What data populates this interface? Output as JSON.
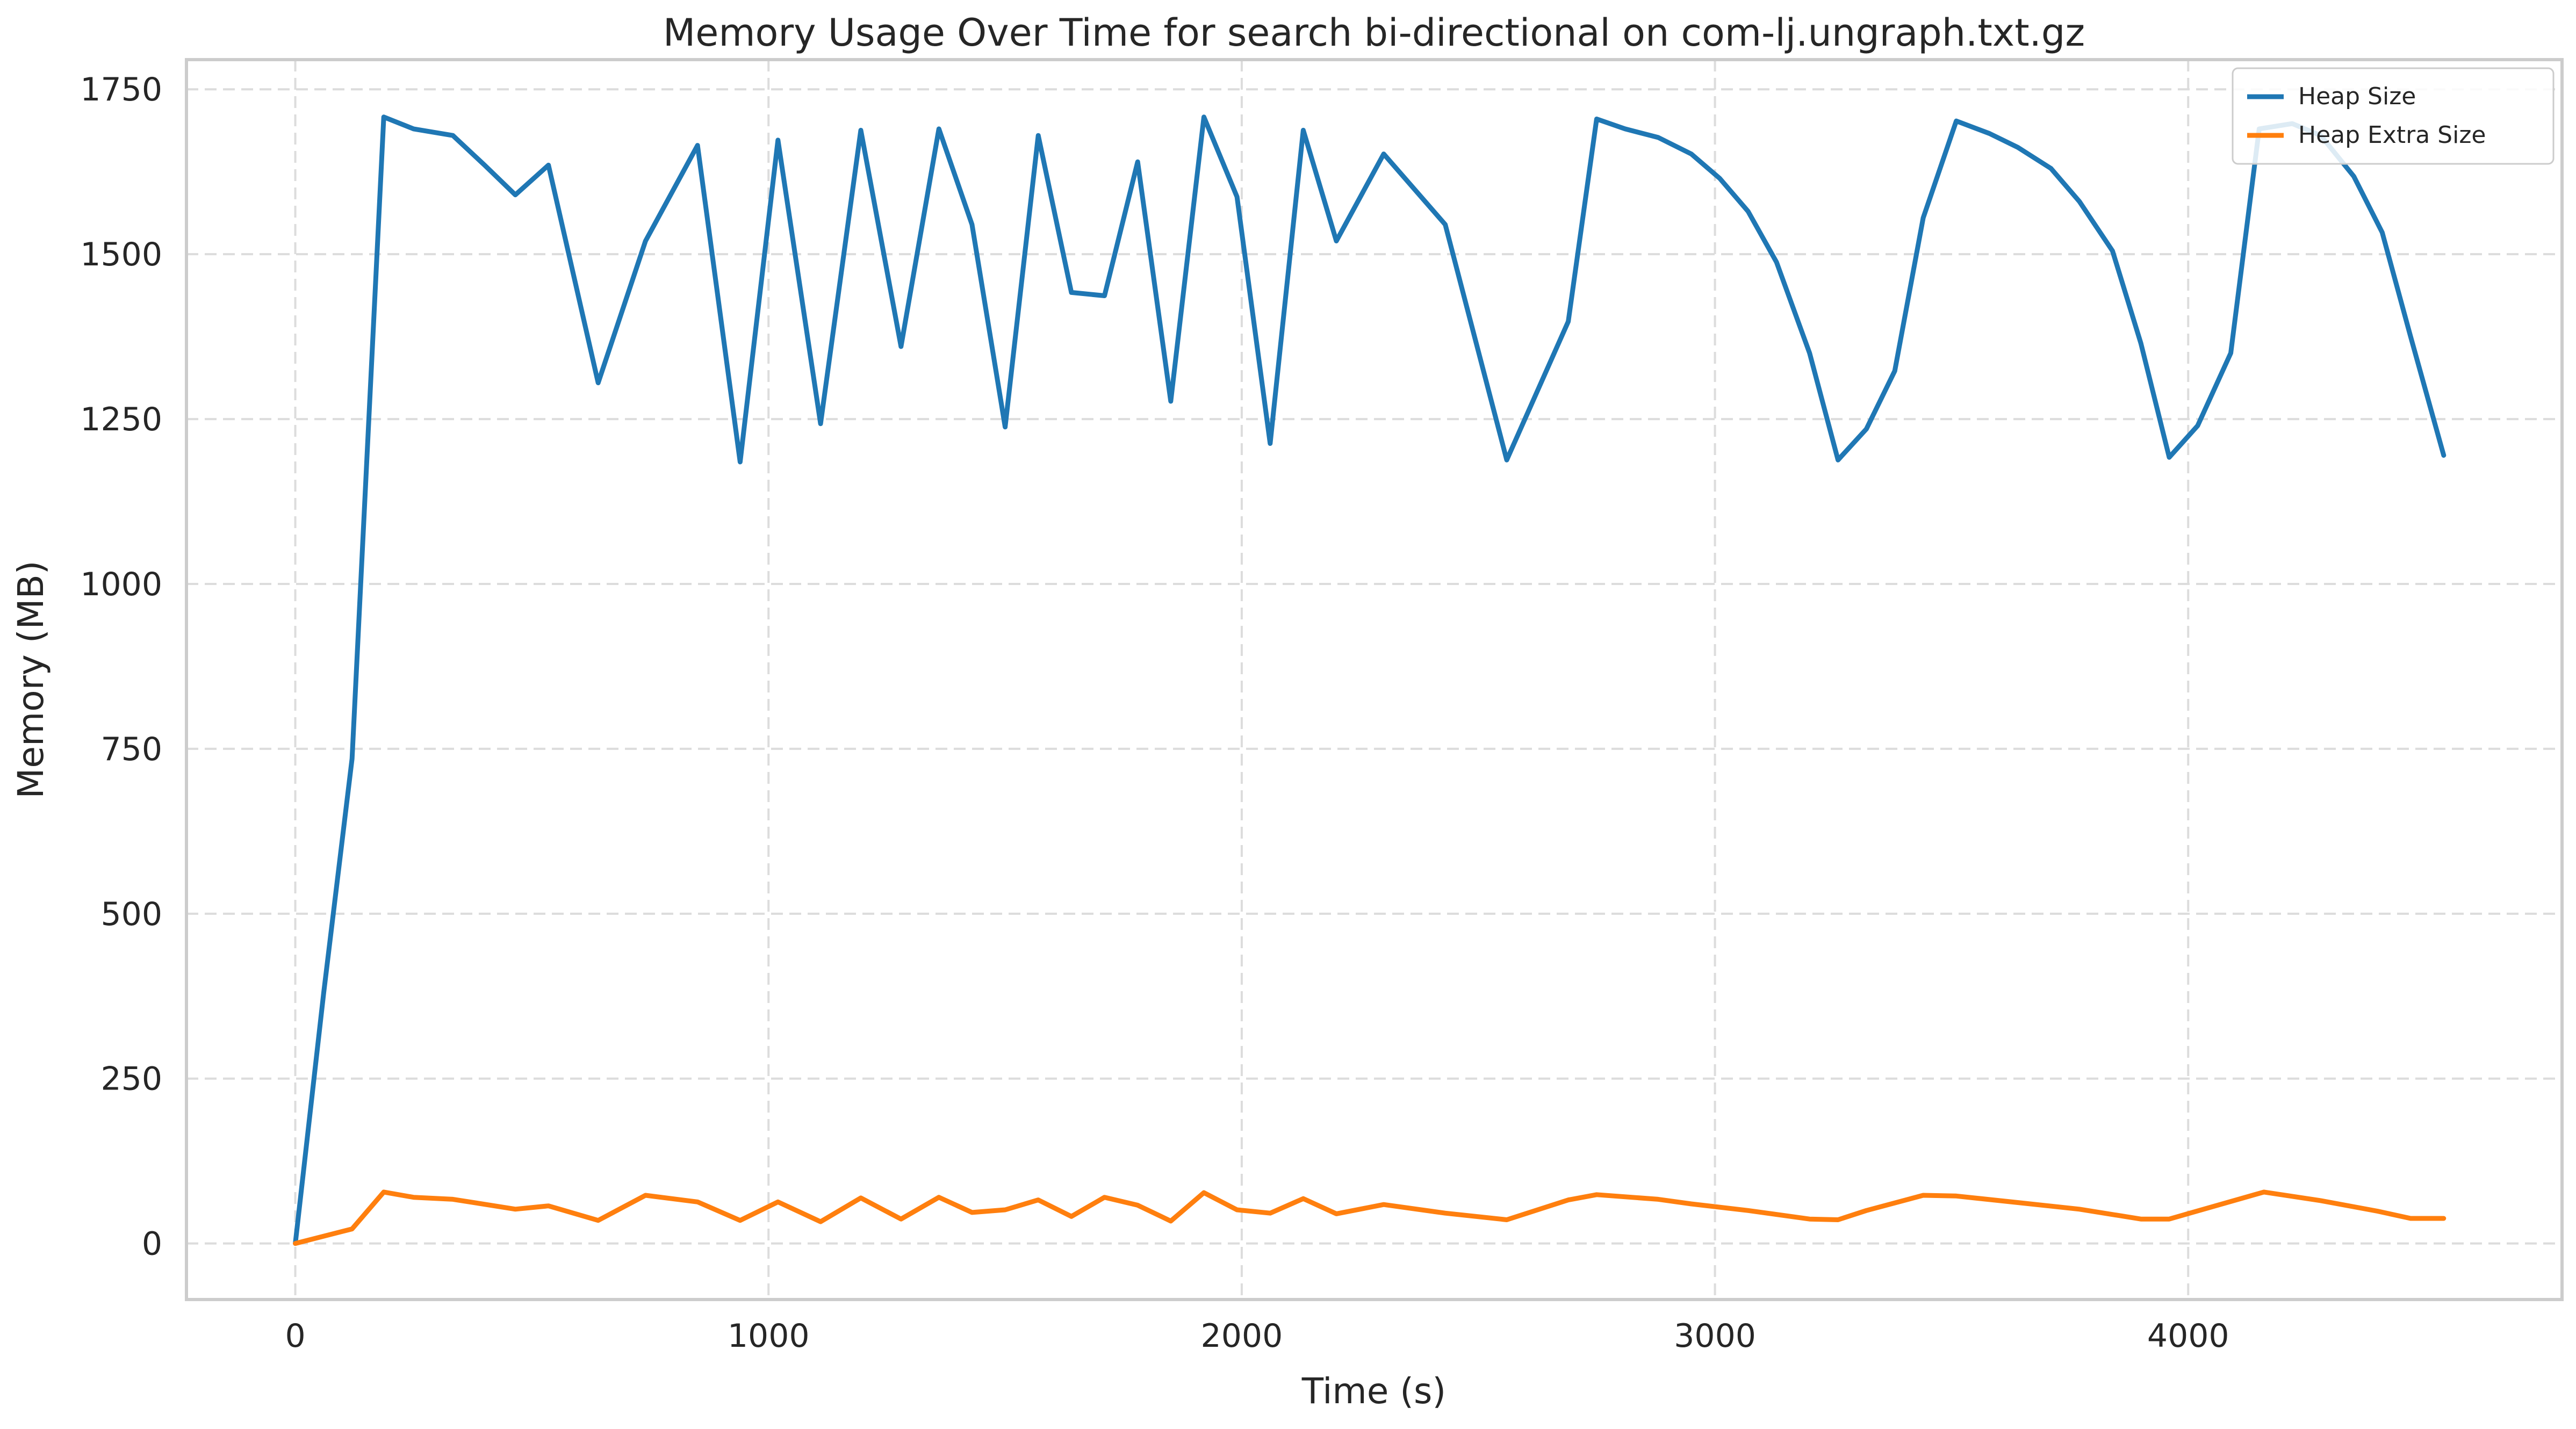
{
  "chart_data": {
    "type": "line",
    "title": "Memory Usage Over Time for search bi-directional on com-lj.ungraph.txt.gz",
    "xlabel": "Time (s)",
    "ylabel": "Memory (MB)",
    "xlim": [
      -230,
      4790
    ],
    "ylim": [
      -85,
      1795
    ],
    "xticks": [
      0,
      1000,
      2000,
      3000,
      4000
    ],
    "yticks": [
      0,
      250,
      500,
      750,
      1000,
      1250,
      1500,
      1750
    ],
    "grid": true,
    "legend_position": "top-right",
    "series": [
      {
        "name": "Heap Size",
        "color": "#1f77b4",
        "x": [
          0,
          60,
          120,
          187,
          250,
          333,
          400,
          465,
          535,
          640,
          740,
          850,
          940,
          1020,
          1110,
          1195,
          1280,
          1360,
          1430,
          1500,
          1570,
          1640,
          1710,
          1780,
          1850,
          1920,
          1990,
          2060,
          2130,
          2200,
          2300,
          2430,
          2560,
          2690,
          2750,
          2810,
          2880,
          2950,
          3010,
          3070,
          3130,
          3200,
          3260,
          3320,
          3380,
          3440,
          3510,
          3580,
          3640,
          3710,
          3770,
          3840,
          3900,
          3960,
          4020,
          4090,
          4150,
          4220,
          4280,
          4350,
          4410,
          4470,
          4540
        ],
        "y": [
          0,
          380,
          735,
          1708,
          1690,
          1680,
          1635,
          1590,
          1635,
          1305,
          1520,
          1665,
          1185,
          1673,
          1243,
          1688,
          1360,
          1690,
          1545,
          1238,
          1680,
          1442,
          1437,
          1640,
          1277,
          1708,
          1587,
          1213,
          1688,
          1520,
          1652,
          1545,
          1188,
          1398,
          1705,
          1690,
          1677,
          1652,
          1615,
          1565,
          1488,
          1350,
          1188,
          1235,
          1323,
          1555,
          1702,
          1683,
          1662,
          1630,
          1580,
          1505,
          1365,
          1192,
          1240,
          1350,
          1690,
          1698,
          1680,
          1618,
          1533,
          1375,
          1195
        ]
      },
      {
        "name": "Heap Extra Size",
        "color": "#ff7f0e",
        "x": [
          0,
          120,
          187,
          250,
          333,
          465,
          535,
          640,
          740,
          850,
          940,
          1020,
          1110,
          1195,
          1280,
          1360,
          1430,
          1500,
          1570,
          1640,
          1710,
          1780,
          1850,
          1920,
          1990,
          2060,
          2130,
          2200,
          2300,
          2430,
          2560,
          2690,
          2750,
          2880,
          2950,
          3070,
          3200,
          3260,
          3320,
          3440,
          3510,
          3640,
          3770,
          3900,
          3960,
          4160,
          4280,
          4400,
          4470,
          4540
        ],
        "y": [
          0,
          22,
          78,
          70,
          67,
          52,
          57,
          35,
          73,
          63,
          35,
          63,
          33,
          69,
          37,
          70,
          47,
          51,
          66,
          41,
          70,
          58,
          34,
          77,
          51,
          46,
          68,
          45,
          59,
          46,
          36,
          66,
          74,
          67,
          60,
          50,
          37,
          36,
          50,
          73,
          72,
          62,
          52,
          37,
          37,
          78,
          65,
          49,
          38,
          38
        ]
      }
    ]
  }
}
